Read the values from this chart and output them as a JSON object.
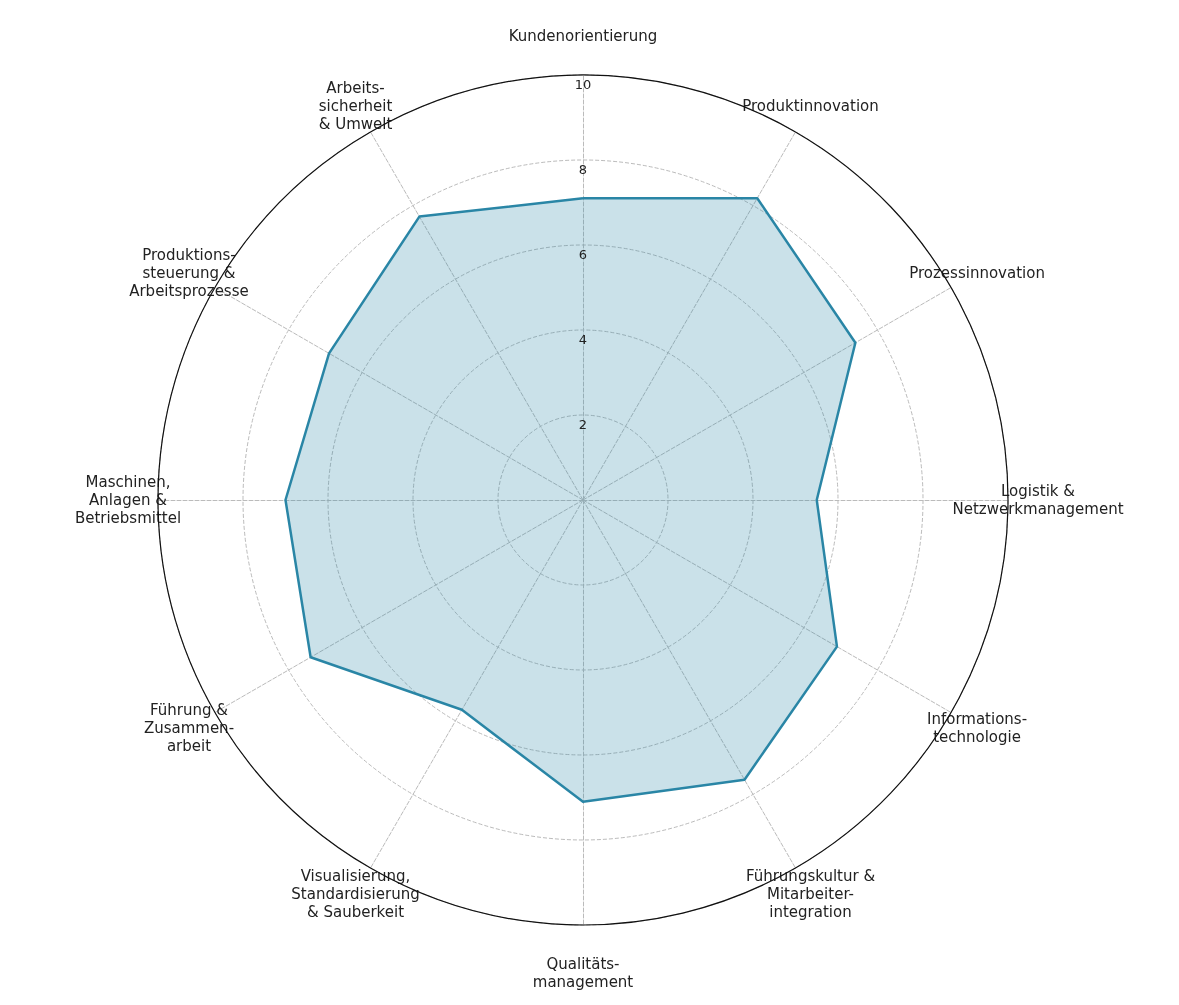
{
  "chart_data": {
    "type": "radar",
    "categories": [
      "Kundenorientierung",
      "Produktinnovation",
      "Prozessinnovation",
      "Logistik &\nNetzwerkmanagement",
      "Informations-\ntechnologie",
      "Führungskultur &\nMitarbeiter-\nintegration",
      "Qualitäts-\nmanagement",
      "Visualisierung,\nStandardisierung\n& Sauberkeit",
      "Führung &\nZusammen-\narbeit",
      "Maschinen,\nAnlagen &\nBetriebsmittel",
      "Produktions-\nsteuerung &\nArbeitsprozesse",
      "Arbeits-\nsicherheit\n& Umwelt"
    ],
    "series": [
      {
        "color": "#2a86a6",
        "values": [
          7.1,
          8.2,
          7.4,
          5.5,
          6.9,
          7.6,
          7.1,
          5.7,
          7.4,
          7.0,
          6.9,
          7.7
        ]
      }
    ],
    "ylim": [
      0,
      10
    ],
    "yticks": [
      2,
      4,
      6,
      8,
      10
    ],
    "grid": true
  }
}
